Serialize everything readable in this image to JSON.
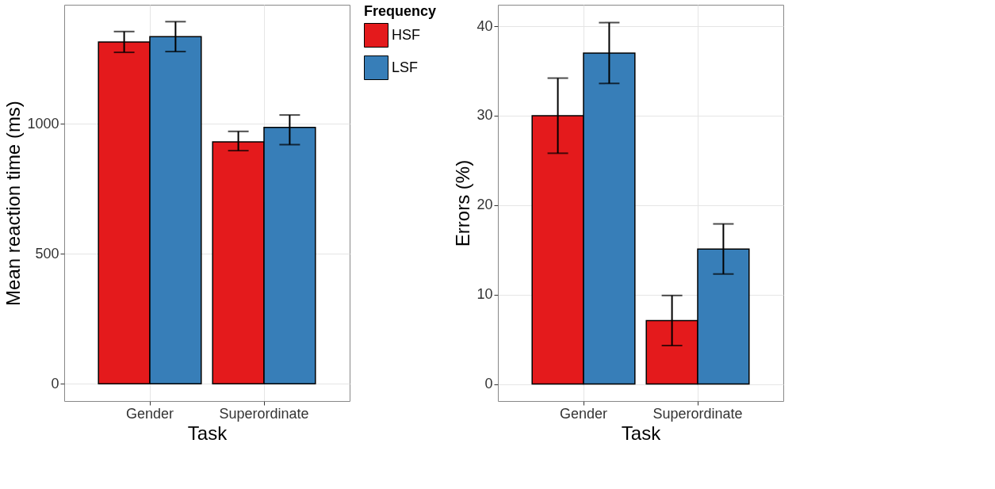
{
  "chart_data": [
    {
      "type": "bar",
      "categories": [
        "Gender",
        "Superordinate"
      ],
      "xlabel": "Task",
      "ylabel": "Mean reaction time (ms)",
      "ylim": [
        -66,
        1458
      ],
      "yticks": [
        0,
        500,
        1000
      ],
      "grid": true,
      "legend": "right",
      "legend_title": "Frequency",
      "series": [
        {
          "name": "HSF",
          "color": "#e41a1c",
          "values": [
            1315,
            931
          ],
          "errors": [
            [
              1275,
              1355
            ],
            [
              897,
              971
            ]
          ]
        },
        {
          "name": "LSF",
          "color": "#377eb8",
          "values": [
            1335,
            986
          ],
          "errors": [
            [
              1278,
              1393
            ],
            [
              920,
              1034
            ]
          ]
        }
      ]
    },
    {
      "type": "bar",
      "categories": [
        "Gender",
        "Superordinate"
      ],
      "xlabel": "Task",
      "ylabel": "Errors (%)",
      "ylim": [
        -1.9,
        42.4
      ],
      "yticks": [
        0,
        10,
        20,
        30,
        40
      ],
      "grid": true,
      "legend": false,
      "series": [
        {
          "color": "#e41a1c",
          "values": [
            30,
            7.1
          ],
          "errors": [
            [
              25.8,
              34.2
            ],
            [
              4.3,
              9.9
            ]
          ]
        },
        {
          "color": "#377eb8",
          "values": [
            37,
            15.1
          ],
          "errors": [
            [
              33.6,
              40.4
            ],
            [
              12.3,
              17.9
            ]
          ]
        }
      ]
    }
  ]
}
